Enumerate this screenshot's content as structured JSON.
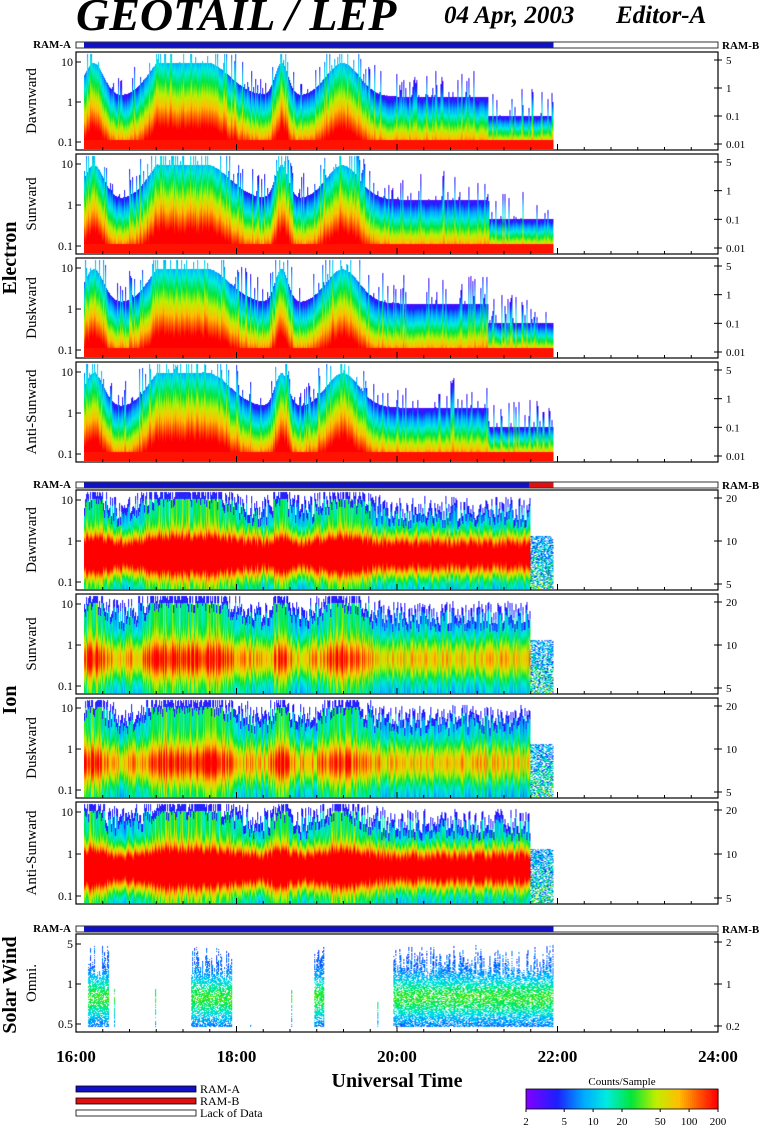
{
  "header": {
    "title": "GEOTAIL / LEP",
    "date": "04 Apr, 2003",
    "editor": "Editor-A"
  },
  "groups": [
    {
      "label": "Electron",
      "status_left": "RAM-A",
      "status_right": "RAM-B"
    },
    {
      "label": "Ion",
      "status_left": "RAM-A",
      "status_right": "RAM-B"
    },
    {
      "label": "Solar Wind",
      "status_left": "RAM-A",
      "status_right": "RAM-B"
    }
  ],
  "panels": [
    {
      "group": 0,
      "label": "Dawnward",
      "left_ticks": [
        "10",
        "1",
        "0.1"
      ],
      "right_ticks": [
        "5",
        "1",
        "0.1",
        "0.01"
      ]
    },
    {
      "group": 0,
      "label": "Sunward",
      "left_ticks": [
        "10",
        "1",
        "0.1"
      ],
      "right_ticks": [
        "5",
        "1",
        "0.1",
        "0.01"
      ]
    },
    {
      "group": 0,
      "label": "Duskward",
      "left_ticks": [
        "10",
        "1",
        "0.1"
      ],
      "right_ticks": [
        "5",
        "1",
        "0.1",
        "0.01"
      ]
    },
    {
      "group": 0,
      "label": "Anti-Sunward",
      "left_ticks": [
        "10",
        "1",
        "0.1"
      ],
      "right_ticks": [
        "5",
        "1",
        "0.1",
        "0.01"
      ]
    },
    {
      "group": 1,
      "label": "Dawnward",
      "left_ticks": [
        "10",
        "1",
        "0.1"
      ],
      "right_ticks": [
        "20",
        "10",
        "5"
      ]
    },
    {
      "group": 1,
      "label": "Sunward",
      "left_ticks": [
        "10",
        "1",
        "0.1"
      ],
      "right_ticks": [
        "20",
        "10",
        "5"
      ]
    },
    {
      "group": 1,
      "label": "Duskward",
      "left_ticks": [
        "10",
        "1",
        "0.1"
      ],
      "right_ticks": [
        "20",
        "10",
        "5"
      ]
    },
    {
      "group": 1,
      "label": "Anti-Sunward",
      "left_ticks": [
        "10",
        "1",
        "0.1"
      ],
      "right_ticks": [
        "20",
        "10",
        "5"
      ]
    },
    {
      "group": 2,
      "label": "Omni.",
      "left_ticks": [
        "5",
        "1",
        "0.5"
      ],
      "right_ticks": [
        "2",
        "1",
        "0.2"
      ]
    }
  ],
  "x_axis": {
    "label": "Universal Time",
    "ticks": [
      "16:00",
      "18:00",
      "20:00",
      "22:00",
      "24:00"
    ]
  },
  "legend": {
    "items": [
      {
        "label": "RAM-A",
        "color": "#1010c8"
      },
      {
        "label": "RAM-B",
        "color": "#e01010"
      },
      {
        "label": "Lack of Data",
        "color": "#ffffff"
      }
    ]
  },
  "colorbar": {
    "title": "Counts/Sample",
    "ticks": [
      "2",
      "5",
      "10",
      "20",
      "50",
      "100",
      "200"
    ]
  },
  "chart_data": {
    "type": "heatmap",
    "title": "GEOTAIL / LEP",
    "xlabel": "Universal Time",
    "x_range_hours": [
      16,
      24
    ],
    "data_end_hour": 21.95,
    "colorbar_range": [
      2,
      200
    ],
    "colorbar_scale": "log",
    "ram_mode": {
      "electron": [
        {
          "from": 16.1,
          "to": 21.95,
          "mode": "RAM-A"
        }
      ],
      "ion": [
        {
          "from": 16.1,
          "to": 21.65,
          "mode": "RAM-A"
        },
        {
          "from": 21.65,
          "to": 21.95,
          "mode": "RAM-B"
        }
      ],
      "solar_wind": [
        {
          "from": 16.1,
          "to": 21.95,
          "mode": "RAM-A"
        }
      ]
    },
    "panels": [
      {
        "species": "Electron",
        "direction": "Dawnward",
        "y_scale": "log"
      },
      {
        "species": "Electron",
        "direction": "Sunward",
        "y_scale": "log"
      },
      {
        "species": "Electron",
        "direction": "Duskward",
        "y_scale": "log"
      },
      {
        "species": "Electron",
        "direction": "Anti-Sunward",
        "y_scale": "log"
      },
      {
        "species": "Ion",
        "direction": "Dawnward",
        "y_scale": "log"
      },
      {
        "species": "Ion",
        "direction": "Sunward",
        "y_scale": "log"
      },
      {
        "species": "Ion",
        "direction": "Duskward",
        "y_scale": "log"
      },
      {
        "species": "Ion",
        "direction": "Anti-Sunward",
        "y_scale": "log"
      },
      {
        "species": "Solar Wind",
        "direction": "Omni.",
        "y_scale": "log"
      }
    ]
  }
}
